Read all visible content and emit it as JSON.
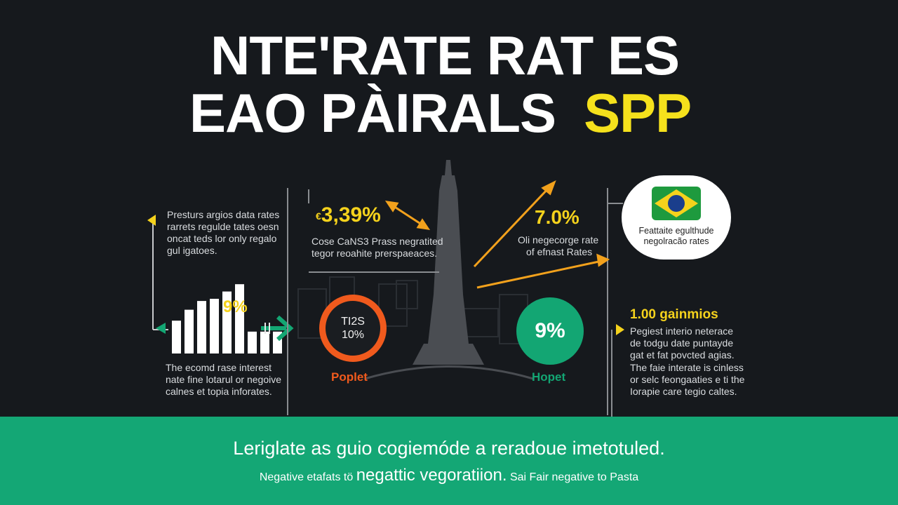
{
  "title": {
    "line1": "NTE'RATE RAT ES",
    "line2_main": "EAO PÀIRALS",
    "line2_highlight": "SPP"
  },
  "left_panel": {
    "top_text": [
      "Presturs argios data rates",
      "rarrets regulde tates oesn",
      "oncat teds lor only regalo",
      "gul igatoes."
    ],
    "bar_label": "9%",
    "bottom_text": [
      "The ecomd rase interest",
      "nate fine lotarul or negoive",
      "calnes et topia inforates."
    ],
    "bar_values": [
      0.45,
      0.6,
      0.72,
      0.75,
      0.85,
      0.95,
      0.3,
      0.3,
      0.3
    ]
  },
  "center_panel": {
    "stat": "3,39%",
    "stat_prefix": "€",
    "desc": [
      "Cose CaNS3 Prass negratited",
      "tegor reoahite prerspaeaces."
    ],
    "circle_left_line1": "TI2S",
    "circle_left_line2": "10%",
    "circle_left_label": "Poplet"
  },
  "right_center": {
    "stat": "7.0%",
    "desc": [
      "Oli negecorge rate",
      "of efnast Rates"
    ],
    "circle_right_value": "9%",
    "circle_right_label": "Hopet"
  },
  "right_panel": {
    "badge_text": [
      "Feattaite egulthude",
      "negolracão rates"
    ],
    "heading": "1.00 gainmios",
    "text1": [
      "Pegiest interio neterace",
      "de todgu date puntayde",
      "gat et fat povcted agias."
    ],
    "text2": [
      "The faie interate is cinless",
      "or selc feongaaties e ti the",
      "Iorapie care tegio caltes."
    ]
  },
  "banner": {
    "headline": "Leriglate as guio cogiemóde a reradoue imetotuled.",
    "sub_left": "Negative etafats tö",
    "sub_mid": "negattic vegoratiion.",
    "sub_right": "Sai Fair negative to Pasta"
  },
  "colors": {
    "background": "#16191d",
    "accent_yellow": "#f5d21c",
    "accent_green": "#13a673",
    "accent_orange": "#f05a1d",
    "arrow_orange": "#f2a11c"
  },
  "icons": [
    "left-arrow-icon",
    "right-arrow-icon",
    "double-arrow-icon",
    "up-arrow-icon",
    "brazil-flag-icon",
    "tower-icon"
  ]
}
